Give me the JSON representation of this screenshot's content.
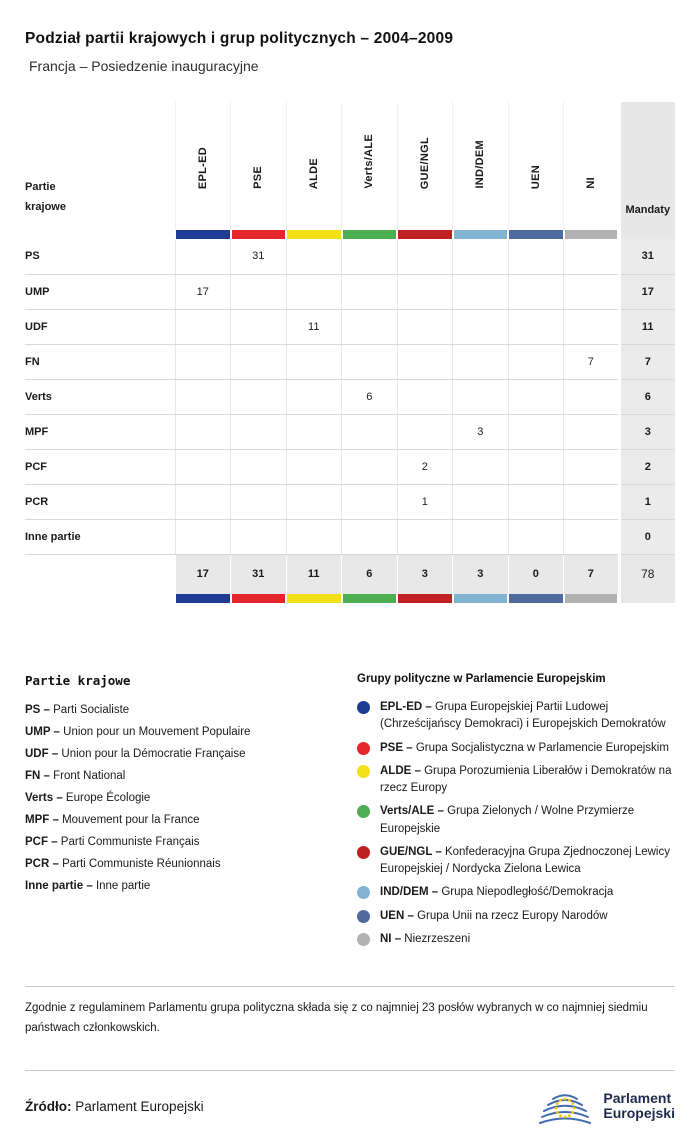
{
  "chart_data": {
    "type": "table",
    "title": "Podział partii krajowych i grup politycznych – 2004–2009",
    "subtitle": "Francja – Posiedzenie inauguracyjne",
    "corner_label": "Partie krajowe",
    "mandates_label": "Mandaty",
    "groups": [
      {
        "label": "EPL-ED",
        "color": "#1f3c95"
      },
      {
        "label": "PSE",
        "color": "#e4262d"
      },
      {
        "label": "ALDE",
        "color": "#f2e118"
      },
      {
        "label": "Verts/ALE",
        "color": "#4cae50"
      },
      {
        "label": "GUE/NGL",
        "color": "#bf2122"
      },
      {
        "label": "IND/DEM",
        "color": "#82b4d1"
      },
      {
        "label": "UEN",
        "color": "#4f6b9e"
      },
      {
        "label": "NI",
        "color": "#b2b2b2"
      }
    ],
    "rows": [
      {
        "party": "PS",
        "values": [
          null,
          31,
          null,
          null,
          null,
          null,
          null,
          null
        ],
        "mandates": 31
      },
      {
        "party": "UMP",
        "values": [
          17,
          null,
          null,
          null,
          null,
          null,
          null,
          null
        ],
        "mandates": 17
      },
      {
        "party": "UDF",
        "values": [
          null,
          null,
          11,
          null,
          null,
          null,
          null,
          null
        ],
        "mandates": 11
      },
      {
        "party": "FN",
        "values": [
          null,
          null,
          null,
          null,
          null,
          null,
          null,
          7
        ],
        "mandates": 7
      },
      {
        "party": "Verts",
        "values": [
          null,
          null,
          null,
          6,
          null,
          null,
          null,
          null
        ],
        "mandates": 6
      },
      {
        "party": "MPF",
        "values": [
          null,
          null,
          null,
          null,
          null,
          3,
          null,
          null
        ],
        "mandates": 3
      },
      {
        "party": "PCF",
        "values": [
          null,
          null,
          null,
          null,
          2,
          null,
          null,
          null
        ],
        "mandates": 2
      },
      {
        "party": "PCR",
        "values": [
          null,
          null,
          null,
          null,
          1,
          null,
          null,
          null
        ],
        "mandates": 1
      },
      {
        "party": "Inne partie",
        "values": [
          null,
          null,
          null,
          null,
          null,
          null,
          null,
          null
        ],
        "mandates": 0
      }
    ],
    "totals": [
      17,
      31,
      11,
      6,
      3,
      3,
      0,
      7
    ],
    "total_mandates": 78
  },
  "legend_parties": {
    "title": "Partie krajowe",
    "items": [
      {
        "abbr": "PS –",
        "name": "Parti Socialiste"
      },
      {
        "abbr": "UMP –",
        "name": "Union pour un Mouvement Populaire"
      },
      {
        "abbr": "UDF –",
        "name": "Union pour la Démocratie Française"
      },
      {
        "abbr": "FN –",
        "name": "Front National"
      },
      {
        "abbr": "Verts –",
        "name": "Europe Écologie"
      },
      {
        "abbr": "MPF –",
        "name": "Mouvement pour la France"
      },
      {
        "abbr": "PCF –",
        "name": "Parti Communiste Français"
      },
      {
        "abbr": "PCR –",
        "name": "Parti Communiste Réunionnais"
      },
      {
        "abbr": "Inne partie –",
        "name": "Inne partie"
      }
    ]
  },
  "legend_groups": {
    "title": "Grupy polityczne w Parlamencie Europejskim",
    "items": [
      {
        "abbr": "EPL-ED –",
        "name": "Grupa Europejskiej Partii Ludowej (Chrześcijańscy Demokraci) i Europejskich Demokratów",
        "color": "#1f3c95"
      },
      {
        "abbr": "PSE –",
        "name": "Grupa Socjalistyczna w Parlamencie Europejskim",
        "color": "#e4262d"
      },
      {
        "abbr": "ALDE –",
        "name": "Grupa Porozumienia Liberałów i Demokratów na rzecz Europy",
        "color": "#f2e118"
      },
      {
        "abbr": "Verts/ALE –",
        "name": "Grupa Zielonych / Wolne Przymierze Europejskie",
        "color": "#4cae50"
      },
      {
        "abbr": "GUE/NGL –",
        "name": "Konfederacyjna Grupa Zjednoczonej Lewicy Europejskiej / Nordycka Zielona Lewica",
        "color": "#bf2122"
      },
      {
        "abbr": "IND/DEM –",
        "name": "Grupa Niepodległość/Demokracja",
        "color": "#82b4d1"
      },
      {
        "abbr": "UEN –",
        "name": "Grupa Unii na rzecz Europy Narodów",
        "color": "#4f6b9e"
      },
      {
        "abbr": "NI –",
        "name": "Niezrzeszeni",
        "color": "#b2b2b2"
      }
    ]
  },
  "footer": {
    "note": "Zgodnie z regulaminem Parlamentu grupa polityczna składa się z co najmniej 23 posłów wybranych w co najmniej siedmiu państwach członkowskich.",
    "source_label": "Źródło:",
    "source_value": "Parlament Europejski",
    "logo_line1": "Parlament",
    "logo_line2": "Europejski"
  }
}
